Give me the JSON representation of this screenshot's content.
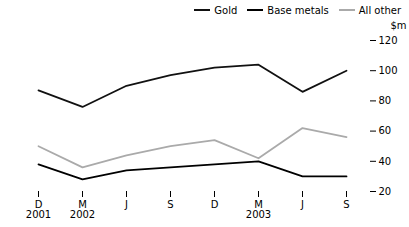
{
  "chart_data": {
    "type": "line",
    "categories": [
      "D\n2001",
      "M\n2002",
      "J",
      "S",
      "D",
      "M\n2003",
      "J",
      "S"
    ],
    "series": [
      {
        "name": "Gold",
        "color": "#111111",
        "values": [
          87,
          76,
          90,
          97,
          102,
          104,
          86,
          100
        ]
      },
      {
        "name": "Base metals",
        "color": "#000000",
        "values": [
          38,
          28,
          34,
          36,
          38,
          40,
          30,
          30
        ]
      },
      {
        "name": "All other",
        "color": "#aaaaaa",
        "values": [
          50,
          36,
          44,
          50,
          54,
          42,
          62,
          56
        ]
      }
    ],
    "ylabel": "$m",
    "ylim": [
      20,
      120
    ],
    "yticks": [
      20,
      40,
      60,
      80,
      100,
      120
    ],
    "legend": "upper right",
    "grid": false
  }
}
